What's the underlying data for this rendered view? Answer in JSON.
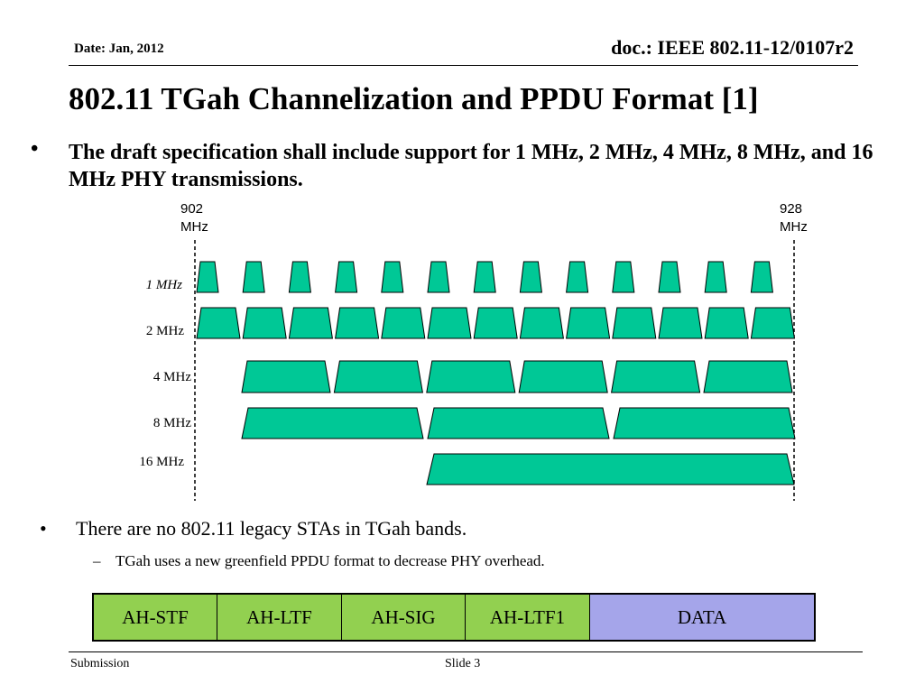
{
  "header": {
    "date": "Date: Jan, 2012",
    "doc": "doc.: IEEE 802.11-12/0107r2"
  },
  "title": "802.11 TGah Channelization and PPDU Format [1]",
  "bullets": {
    "main": "The draft specification shall include support for 1 MHz, 2 MHz, 4 MHz, 8 MHz, and 16 MHz PHY transmissions.",
    "second": "There are no 802.11 legacy STAs in TGah bands.",
    "sub": "TGah uses a new greenfield PPDU format to decrease PHY overhead."
  },
  "figure": {
    "freq_left": [
      "902",
      "MHz"
    ],
    "freq_right": [
      "928",
      "MHz"
    ],
    "channel_color": "#00c896",
    "rows": [
      {
        "label": "1 MHz",
        "italic": true,
        "count": 13
      },
      {
        "label": "2 MHz",
        "italic": false,
        "count": 13
      },
      {
        "label": "4 MHz",
        "italic": false,
        "count": 6
      },
      {
        "label": "8 MHz",
        "italic": false,
        "count": 3
      },
      {
        "label": "16 MHz",
        "italic": false,
        "count": 1
      }
    ]
  },
  "ppdu": {
    "fields": [
      {
        "label": "AH-STF",
        "color": "#92d050"
      },
      {
        "label": "AH-LTF",
        "color": "#92d050"
      },
      {
        "label": "AH-SIG",
        "color": "#92d050"
      },
      {
        "label": "AH-LTF1",
        "color": "#92d050"
      },
      {
        "label": "DATA",
        "color": "#a5a5ea"
      }
    ]
  },
  "footer": {
    "left": "Submission",
    "slide": "Slide 3"
  }
}
